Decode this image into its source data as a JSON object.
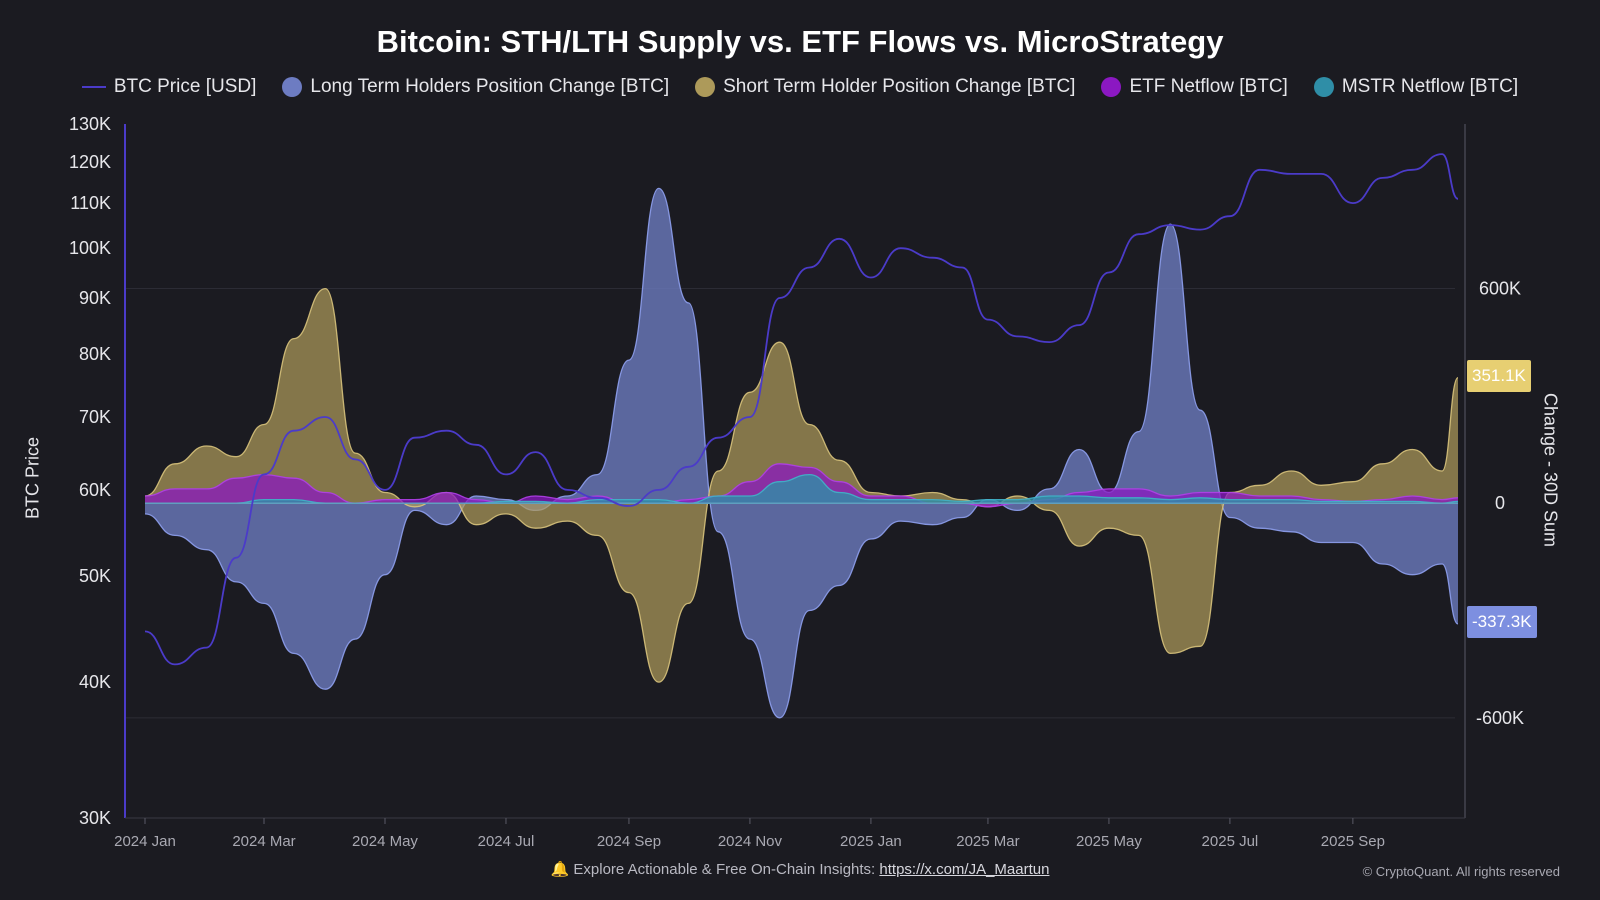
{
  "title": "Bitcoin: STH/LTH Supply vs. ETF Flows vs. MicroStrategy",
  "legend": [
    {
      "label": "BTC Price [USD]",
      "color": "#4b3bc9",
      "shape": "line"
    },
    {
      "label": "Long Term Holders Position Change [BTC]",
      "color": "#6d7cc2",
      "shape": "dot"
    },
    {
      "label": "Short Term Holder Position Change [BTC]",
      "color": "#ad9a5a",
      "shape": "dot"
    },
    {
      "label": "ETF Netflow [BTC]",
      "color": "#8b18c2",
      "shape": "dot"
    },
    {
      "label": "MSTR Netflow [BTC]",
      "color": "#2f8ea7",
      "shape": "dot"
    }
  ],
  "footer": {
    "text": "Explore Actionable & Free On-Chain Insights:",
    "link": "https://x.com/JA_Maartun",
    "copyright": "© CryptoQuant. All rights reserved",
    "icon": "bell-icon"
  },
  "badges": {
    "sth_last": "351.1K",
    "lth_last": "-337.3K"
  },
  "chart_data": {
    "type": "area",
    "title": "Bitcoin: STH/LTH Supply vs. ETF Flows vs. MicroStrategy",
    "x_ticks": [
      "2024 Jan",
      "2024 Mar",
      "2024 May",
      "2024 Jul",
      "2024 Sep",
      "2024 Nov",
      "2025 Jan",
      "2025 Mar",
      "2025 May",
      "2025 Jul",
      "2025 Sep"
    ],
    "x": [
      "2024-01-01",
      "2024-01-16",
      "2024-02-01",
      "2024-02-16",
      "2024-03-01",
      "2024-03-16",
      "2024-04-01",
      "2024-04-16",
      "2024-05-01",
      "2024-05-16",
      "2024-06-01",
      "2024-06-16",
      "2024-07-01",
      "2024-07-16",
      "2024-08-01",
      "2024-08-16",
      "2024-09-01",
      "2024-09-16",
      "2024-10-01",
      "2024-10-16",
      "2024-11-01",
      "2024-11-16",
      "2024-12-01",
      "2024-12-16",
      "2025-01-01",
      "2025-01-16",
      "2025-02-01",
      "2025-02-16",
      "2025-03-01",
      "2025-03-16",
      "2025-04-01",
      "2025-04-16",
      "2025-05-01",
      "2025-05-16",
      "2025-06-01",
      "2025-06-16",
      "2025-07-01",
      "2025-07-16",
      "2025-08-01",
      "2025-08-16",
      "2025-09-01",
      "2025-09-16",
      "2025-10-01",
      "2025-10-16",
      "2025-10-24"
    ],
    "left_axis": {
      "label": "BTC Price",
      "scale": "log",
      "range": [
        30000,
        130000
      ],
      "ticks": [
        30000,
        40000,
        50000,
        60000,
        70000,
        80000,
        90000,
        100000,
        110000,
        120000,
        130000
      ],
      "tick_labels": [
        "30K",
        "40K",
        "50K",
        "60K",
        "70K",
        "80K",
        "90K",
        "100K",
        "110K",
        "120K",
        "130K"
      ]
    },
    "right_axis": {
      "label": "Change - 30D Sum",
      "scale": "linear",
      "range": [
        -880000,
        1060000
      ],
      "ticks": [
        -600000,
        0,
        600000
      ],
      "tick_labels": [
        "-600K",
        "0",
        "600K"
      ]
    },
    "grid": true,
    "legend_position": "top",
    "series": [
      {
        "name": "BTC Price [USD]",
        "axis": "left",
        "kind": "line",
        "values": [
          44500,
          41500,
          43000,
          52000,
          62000,
          68000,
          70000,
          64000,
          60000,
          67000,
          68000,
          66000,
          62000,
          65000,
          60000,
          59000,
          58000,
          60000,
          63000,
          67000,
          70000,
          90000,
          96000,
          102000,
          94000,
          100000,
          98000,
          96000,
          86000,
          83000,
          82000,
          85000,
          95000,
          103000,
          105000,
          104000,
          107000,
          118000,
          117000,
          117000,
          110000,
          116000,
          118000,
          122000,
          111000
        ]
      },
      {
        "name": "Long Term Holders Position Change [BTC]",
        "axis": "right",
        "kind": "area",
        "values": [
          -30000,
          -90000,
          -130000,
          -220000,
          -280000,
          -420000,
          -520000,
          -380000,
          -200000,
          -20000,
          -60000,
          20000,
          10000,
          -20000,
          20000,
          80000,
          400000,
          880000,
          560000,
          -80000,
          -380000,
          -600000,
          -300000,
          -230000,
          -100000,
          -50000,
          -60000,
          -40000,
          10000,
          -20000,
          40000,
          150000,
          30000,
          200000,
          780000,
          260000,
          -40000,
          -70000,
          -80000,
          -110000,
          -110000,
          -170000,
          -200000,
          -170000,
          -337300
        ]
      },
      {
        "name": "Short Term Holder Position Change [BTC]",
        "axis": "right",
        "kind": "area",
        "values": [
          20000,
          110000,
          160000,
          130000,
          220000,
          460000,
          600000,
          140000,
          30000,
          -10000,
          30000,
          -60000,
          -30000,
          -70000,
          -50000,
          -90000,
          -250000,
          -500000,
          -280000,
          90000,
          310000,
          450000,
          220000,
          120000,
          30000,
          20000,
          30000,
          10000,
          -10000,
          20000,
          -20000,
          -120000,
          -70000,
          -90000,
          -420000,
          -400000,
          30000,
          50000,
          90000,
          50000,
          60000,
          110000,
          150000,
          90000,
          351100
        ]
      },
      {
        "name": "ETF Netflow [BTC]",
        "axis": "right",
        "kind": "area",
        "values": [
          20000,
          40000,
          40000,
          70000,
          80000,
          70000,
          30000,
          0,
          10000,
          10000,
          30000,
          10000,
          0,
          20000,
          10000,
          20000,
          0,
          0,
          10000,
          20000,
          60000,
          110000,
          100000,
          60000,
          20000,
          20000,
          0,
          0,
          -10000,
          0,
          10000,
          30000,
          40000,
          40000,
          20000,
          30000,
          30000,
          20000,
          20000,
          10000,
          5000,
          10000,
          20000,
          10000,
          15000
        ]
      },
      {
        "name": "MSTR Netflow [BTC]",
        "axis": "right",
        "kind": "area",
        "values": [
          0,
          0,
          0,
          0,
          10000,
          10000,
          0,
          0,
          0,
          0,
          0,
          0,
          5000,
          5000,
          0,
          10000,
          10000,
          10000,
          0,
          20000,
          20000,
          60000,
          80000,
          30000,
          10000,
          10000,
          10000,
          5000,
          10000,
          10000,
          20000,
          20000,
          15000,
          15000,
          10000,
          15000,
          10000,
          10000,
          10000,
          5000,
          5000,
          5000,
          5000,
          0,
          5000
        ]
      }
    ]
  }
}
